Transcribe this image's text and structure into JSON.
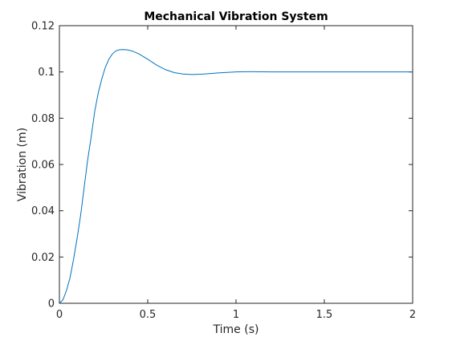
{
  "chart_data": {
    "type": "line",
    "title": "Mechanical Vibration System",
    "xlabel": "Time (s)",
    "ylabel": "Vibration (m)",
    "xlim": [
      0,
      2
    ],
    "ylim": [
      0,
      0.12
    ],
    "xticks": [
      "0",
      "0.5",
      "1",
      "1.5",
      "2"
    ],
    "yticks": [
      "0",
      "0.02",
      "0.04",
      "0.06",
      "0.08",
      "0.1",
      "0.12"
    ],
    "grid": false,
    "line_color": "#0072BD",
    "series": [
      {
        "x": [
          0,
          0.02,
          0.04,
          0.06,
          0.08,
          0.1,
          0.12,
          0.14,
          0.16,
          0.18,
          0.2,
          0.22,
          0.24,
          0.26,
          0.28,
          0.3,
          0.32,
          0.34,
          0.36,
          0.38,
          0.4,
          0.42,
          0.45,
          0.5,
          0.55,
          0.6,
          0.65,
          0.7,
          0.75,
          0.8,
          0.85,
          0.9,
          0.95,
          1.0,
          1.05,
          1.1,
          1.2,
          1.4,
          1.6,
          1.8,
          2.0
        ],
        "y": [
          0,
          0.0015,
          0.0055,
          0.011,
          0.019,
          0.028,
          0.038,
          0.05,
          0.062,
          0.072,
          0.083,
          0.091,
          0.097,
          0.102,
          0.1055,
          0.1078,
          0.1091,
          0.1096,
          0.1097,
          0.1096,
          0.1093,
          0.1088,
          0.1078,
          0.1055,
          0.103,
          0.101,
          0.0997,
          0.0991,
          0.0989,
          0.099,
          0.0993,
          0.0996,
          0.0998,
          0.1,
          0.1001,
          0.1001,
          0.1,
          0.1,
          0.1,
          0.1,
          0.1
        ]
      }
    ]
  }
}
